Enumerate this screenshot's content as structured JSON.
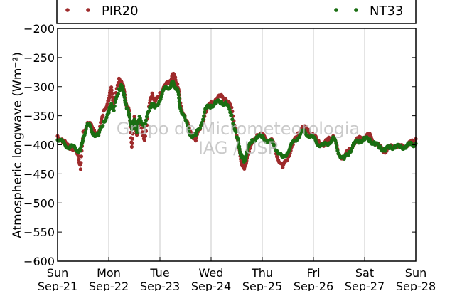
{
  "chart_data": {
    "type": "scatter",
    "ylabel": "Atmospheric longwave (Wm⁻²)",
    "xlabel": "",
    "ylim": [
      -600,
      -200
    ],
    "yticks": [
      -200,
      -250,
      -300,
      -350,
      -400,
      -450,
      -500,
      -550,
      -600
    ],
    "xlim": [
      0,
      7
    ],
    "xticks": [
      {
        "day": 0,
        "label1": "Sun",
        "label2": "Sep-21"
      },
      {
        "day": 1,
        "label1": "Mon",
        "label2": "Sep-22"
      },
      {
        "day": 2,
        "label1": "Tue",
        "label2": "Sep-23"
      },
      {
        "day": 3,
        "label1": "Wed",
        "label2": "Sep-24"
      },
      {
        "day": 4,
        "label1": "Thu",
        "label2": "Sep-25"
      },
      {
        "day": 5,
        "label1": "Fri",
        "label2": "Sep-26"
      },
      {
        "day": 6,
        "label1": "Sat",
        "label2": "Sep-27"
      },
      {
        "day": 7,
        "label1": "Sun",
        "label2": "Sep-28"
      }
    ],
    "grid": "vertical",
    "legend_position": "top",
    "watermark": [
      "Grupo de Micrometeorologia",
      "IAG / USP"
    ],
    "series": [
      {
        "name": "PIR20",
        "color": "#9e2a2b",
        "points": [
          [
            0.0,
            -385
          ],
          [
            0.1,
            -395
          ],
          [
            0.2,
            -400
          ],
          [
            0.3,
            -408
          ],
          [
            0.4,
            -415
          ],
          [
            0.45,
            -440
          ],
          [
            0.5,
            -380
          ],
          [
            0.6,
            -360
          ],
          [
            0.7,
            -375
          ],
          [
            0.8,
            -380
          ],
          [
            0.9,
            -345
          ],
          [
            1.0,
            -320
          ],
          [
            1.05,
            -305
          ],
          [
            1.1,
            -330
          ],
          [
            1.2,
            -290
          ],
          [
            1.25,
            -288
          ],
          [
            1.3,
            -310
          ],
          [
            1.35,
            -330
          ],
          [
            1.4,
            -345
          ],
          [
            1.45,
            -400
          ],
          [
            1.5,
            -355
          ],
          [
            1.55,
            -380
          ],
          [
            1.6,
            -360
          ],
          [
            1.7,
            -390
          ],
          [
            1.8,
            -330
          ],
          [
            1.85,
            -310
          ],
          [
            1.9,
            -330
          ],
          [
            2.0,
            -310
          ],
          [
            2.1,
            -300
          ],
          [
            2.2,
            -290
          ],
          [
            2.25,
            -280
          ],
          [
            2.3,
            -285
          ],
          [
            2.35,
            -300
          ],
          [
            2.4,
            -330
          ],
          [
            2.5,
            -355
          ],
          [
            2.6,
            -380
          ],
          [
            2.7,
            -390
          ],
          [
            2.8,
            -370
          ],
          [
            2.9,
            -340
          ],
          [
            3.0,
            -330
          ],
          [
            3.1,
            -320
          ],
          [
            3.2,
            -318
          ],
          [
            3.3,
            -320
          ],
          [
            3.4,
            -340
          ],
          [
            3.5,
            -380
          ],
          [
            3.55,
            -410
          ],
          [
            3.6,
            -430
          ],
          [
            3.65,
            -445
          ],
          [
            3.7,
            -420
          ],
          [
            3.8,
            -400
          ],
          [
            3.9,
            -380
          ],
          [
            4.0,
            -385
          ],
          [
            4.1,
            -390
          ],
          [
            4.2,
            -395
          ],
          [
            4.3,
            -420
          ],
          [
            4.4,
            -440
          ],
          [
            4.5,
            -420
          ],
          [
            4.6,
            -400
          ],
          [
            4.7,
            -380
          ],
          [
            4.8,
            -370
          ],
          [
            4.9,
            -375
          ],
          [
            5.0,
            -385
          ],
          [
            5.1,
            -395
          ],
          [
            5.2,
            -400
          ],
          [
            5.3,
            -390
          ],
          [
            5.4,
            -385
          ],
          [
            5.5,
            -420
          ],
          [
            5.6,
            -420
          ],
          [
            5.7,
            -410
          ],
          [
            5.8,
            -395
          ],
          [
            5.9,
            -390
          ],
          [
            6.0,
            -385
          ],
          [
            6.1,
            -385
          ],
          [
            6.2,
            -395
          ],
          [
            6.3,
            -405
          ],
          [
            6.4,
            -410
          ],
          [
            6.5,
            -405
          ],
          [
            6.6,
            -400
          ],
          [
            6.7,
            -405
          ],
          [
            6.8,
            -400
          ],
          [
            6.9,
            -398
          ],
          [
            7.0,
            -390
          ]
        ]
      },
      {
        "name": "NT33",
        "color": "#1a6e12",
        "points": [
          [
            0.0,
            -388
          ],
          [
            0.1,
            -398
          ],
          [
            0.2,
            -402
          ],
          [
            0.3,
            -405
          ],
          [
            0.4,
            -408
          ],
          [
            0.45,
            -412
          ],
          [
            0.5,
            -385
          ],
          [
            0.6,
            -365
          ],
          [
            0.7,
            -380
          ],
          [
            0.8,
            -385
          ],
          [
            0.9,
            -360
          ],
          [
            1.0,
            -345
          ],
          [
            1.05,
            -330
          ],
          [
            1.1,
            -340
          ],
          [
            1.2,
            -305
          ],
          [
            1.25,
            -298
          ],
          [
            1.3,
            -315
          ],
          [
            1.35,
            -335
          ],
          [
            1.4,
            -350
          ],
          [
            1.45,
            -370
          ],
          [
            1.5,
            -360
          ],
          [
            1.55,
            -375
          ],
          [
            1.6,
            -355
          ],
          [
            1.7,
            -365
          ],
          [
            1.8,
            -340
          ],
          [
            1.85,
            -325
          ],
          [
            1.9,
            -340
          ],
          [
            2.0,
            -320
          ],
          [
            2.1,
            -305
          ],
          [
            2.2,
            -298
          ],
          [
            2.25,
            -295
          ],
          [
            2.3,
            -298
          ],
          [
            2.35,
            -310
          ],
          [
            2.4,
            -335
          ],
          [
            2.5,
            -360
          ],
          [
            2.6,
            -382
          ],
          [
            2.7,
            -385
          ],
          [
            2.8,
            -365
          ],
          [
            2.9,
            -338
          ],
          [
            3.0,
            -332
          ],
          [
            3.1,
            -328
          ],
          [
            3.2,
            -326
          ],
          [
            3.3,
            -330
          ],
          [
            3.4,
            -350
          ],
          [
            3.5,
            -385
          ],
          [
            3.55,
            -405
          ],
          [
            3.6,
            -420
          ],
          [
            3.65,
            -430
          ],
          [
            3.7,
            -410
          ],
          [
            3.8,
            -395
          ],
          [
            3.9,
            -385
          ],
          [
            4.0,
            -388
          ],
          [
            4.1,
            -392
          ],
          [
            4.2,
            -398
          ],
          [
            4.3,
            -410
          ],
          [
            4.4,
            -425
          ],
          [
            4.5,
            -410
          ],
          [
            4.6,
            -398
          ],
          [
            4.7,
            -385
          ],
          [
            4.8,
            -378
          ],
          [
            4.9,
            -382
          ],
          [
            5.0,
            -390
          ],
          [
            5.1,
            -398
          ],
          [
            5.2,
            -402
          ],
          [
            5.3,
            -395
          ],
          [
            5.4,
            -390
          ],
          [
            5.5,
            -415
          ],
          [
            5.6,
            -425
          ],
          [
            5.7,
            -412
          ],
          [
            5.8,
            -398
          ],
          [
            5.9,
            -393
          ],
          [
            6.0,
            -390
          ],
          [
            6.1,
            -392
          ],
          [
            6.2,
            -398
          ],
          [
            6.3,
            -405
          ],
          [
            6.4,
            -408
          ],
          [
            6.5,
            -405
          ],
          [
            6.6,
            -402
          ],
          [
            6.7,
            -405
          ],
          [
            6.8,
            -402
          ],
          [
            6.9,
            -400
          ],
          [
            7.0,
            -398
          ]
        ]
      }
    ]
  }
}
